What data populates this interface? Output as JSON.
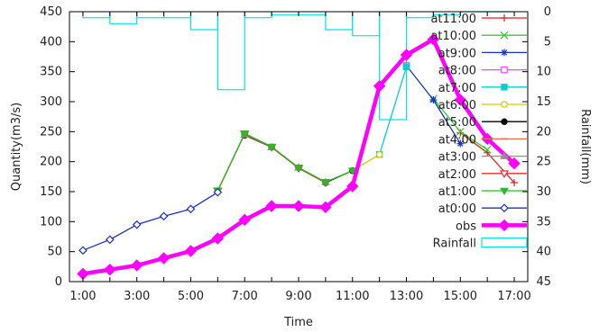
{
  "chart_data": {
    "type": "line",
    "xlabel": "Time",
    "ylabel": "Quantity(m3/s)",
    "y2label": "Rainfall(mm)",
    "x_ticks": [
      "1:00",
      "3:00",
      "5:00",
      "7:00",
      "9:00",
      "11:00",
      "13:00",
      "15:00",
      "17:00"
    ],
    "x_range": [
      0.5,
      17.5
    ],
    "ylim": [
      0,
      450
    ],
    "y_ticks": [
      "0",
      "50",
      "100",
      "150",
      "200",
      "250",
      "300",
      "350",
      "400",
      "450"
    ],
    "y2lim_inverted": [
      0,
      45
    ],
    "y2_ticks": [
      "0",
      "5",
      "10",
      "15",
      "20",
      "25",
      "30",
      "35",
      "40",
      "45"
    ],
    "legend_position": "top-right, inside",
    "grid": false,
    "rainfall": {
      "name": "Rainfall",
      "color": "#00e5e5",
      "x": [
        1,
        2,
        3,
        4,
        5,
        6,
        7,
        8,
        9,
        10,
        11,
        12,
        13,
        14,
        15,
        16
      ],
      "values_mm": [
        1,
        2,
        1,
        1,
        3,
        13,
        1,
        0.5,
        0.5,
        3,
        4,
        18,
        1,
        0.5,
        0,
        0
      ]
    },
    "series": [
      {
        "name": "obs",
        "color": "#ff00ff",
        "marker": "diamond-filled",
        "thick": true,
        "x": [
          1,
          2,
          3,
          4,
          5,
          6,
          7,
          8,
          9,
          10,
          11,
          12,
          13,
          14,
          15,
          16,
          17
        ],
        "values": [
          13,
          20,
          27,
          39,
          51,
          72,
          103,
          126,
          126,
          124,
          159,
          326,
          378,
          404,
          303,
          238,
          197
        ]
      },
      {
        "name": "at0:00",
        "color": "#1a30c8",
        "marker": "diamond-open",
        "x": [
          1,
          2,
          3,
          4,
          5,
          6
        ],
        "values": [
          52,
          70,
          95,
          109,
          121,
          149
        ]
      },
      {
        "name": "at1:00",
        "color": "#22c022",
        "marker": "triangle-down-filled",
        "x": [
          6,
          7,
          8,
          9,
          10,
          11
        ],
        "values": [
          152,
          247,
          225,
          190,
          166,
          185
        ]
      },
      {
        "name": "at2:00",
        "color": "#e03030",
        "marker": "triangle-down-open",
        "x": [
          6,
          7,
          8,
          9,
          10
        ],
        "values": [
          151,
          246,
          224,
          189,
          165
        ]
      },
      {
        "name": "at3:00",
        "color": "#909090",
        "marker": "triangle-filled",
        "x": [
          7,
          8,
          9,
          10
        ],
        "values": [
          245,
          224,
          190,
          166
        ]
      },
      {
        "name": "at4:00",
        "color": "#e07050",
        "marker": "dash",
        "x": [
          7,
          8,
          9
        ],
        "values": [
          246,
          225,
          190
        ]
      },
      {
        "name": "at5:00",
        "color": "#000000",
        "marker": "circle-filled",
        "x": [
          7,
          8,
          9,
          10,
          11
        ],
        "values": [
          244,
          224,
          190,
          165,
          185
        ]
      },
      {
        "name": "at6:00",
        "color": "#d8c800",
        "marker": "circle-open",
        "x": [
          11,
          12
        ],
        "values": [
          185,
          212
        ]
      },
      {
        "name": "at7:00",
        "color": "#00d0d0",
        "marker": "square-filled",
        "x": [
          12,
          13
        ],
        "values": [
          212,
          358
        ]
      },
      {
        "name": "at8:00",
        "color": "#ff40ff",
        "marker": "square-open",
        "x": [
          13
        ],
        "values": [
          360
        ]
      },
      {
        "name": "at9:00",
        "color": "#1a30c8",
        "marker": "asterisk",
        "x": [
          13,
          14,
          15
        ],
        "values": [
          360,
          303,
          230
        ]
      },
      {
        "name": "at10:00",
        "color": "#30d030",
        "marker": "cross",
        "x": [
          14,
          15,
          16
        ],
        "values": [
          305,
          250,
          220
        ]
      },
      {
        "name": "at11:00",
        "color": "#e02020",
        "marker": "plus",
        "x": [
          15,
          16,
          17
        ],
        "values": [
          248,
          215,
          165
        ]
      }
    ]
  }
}
